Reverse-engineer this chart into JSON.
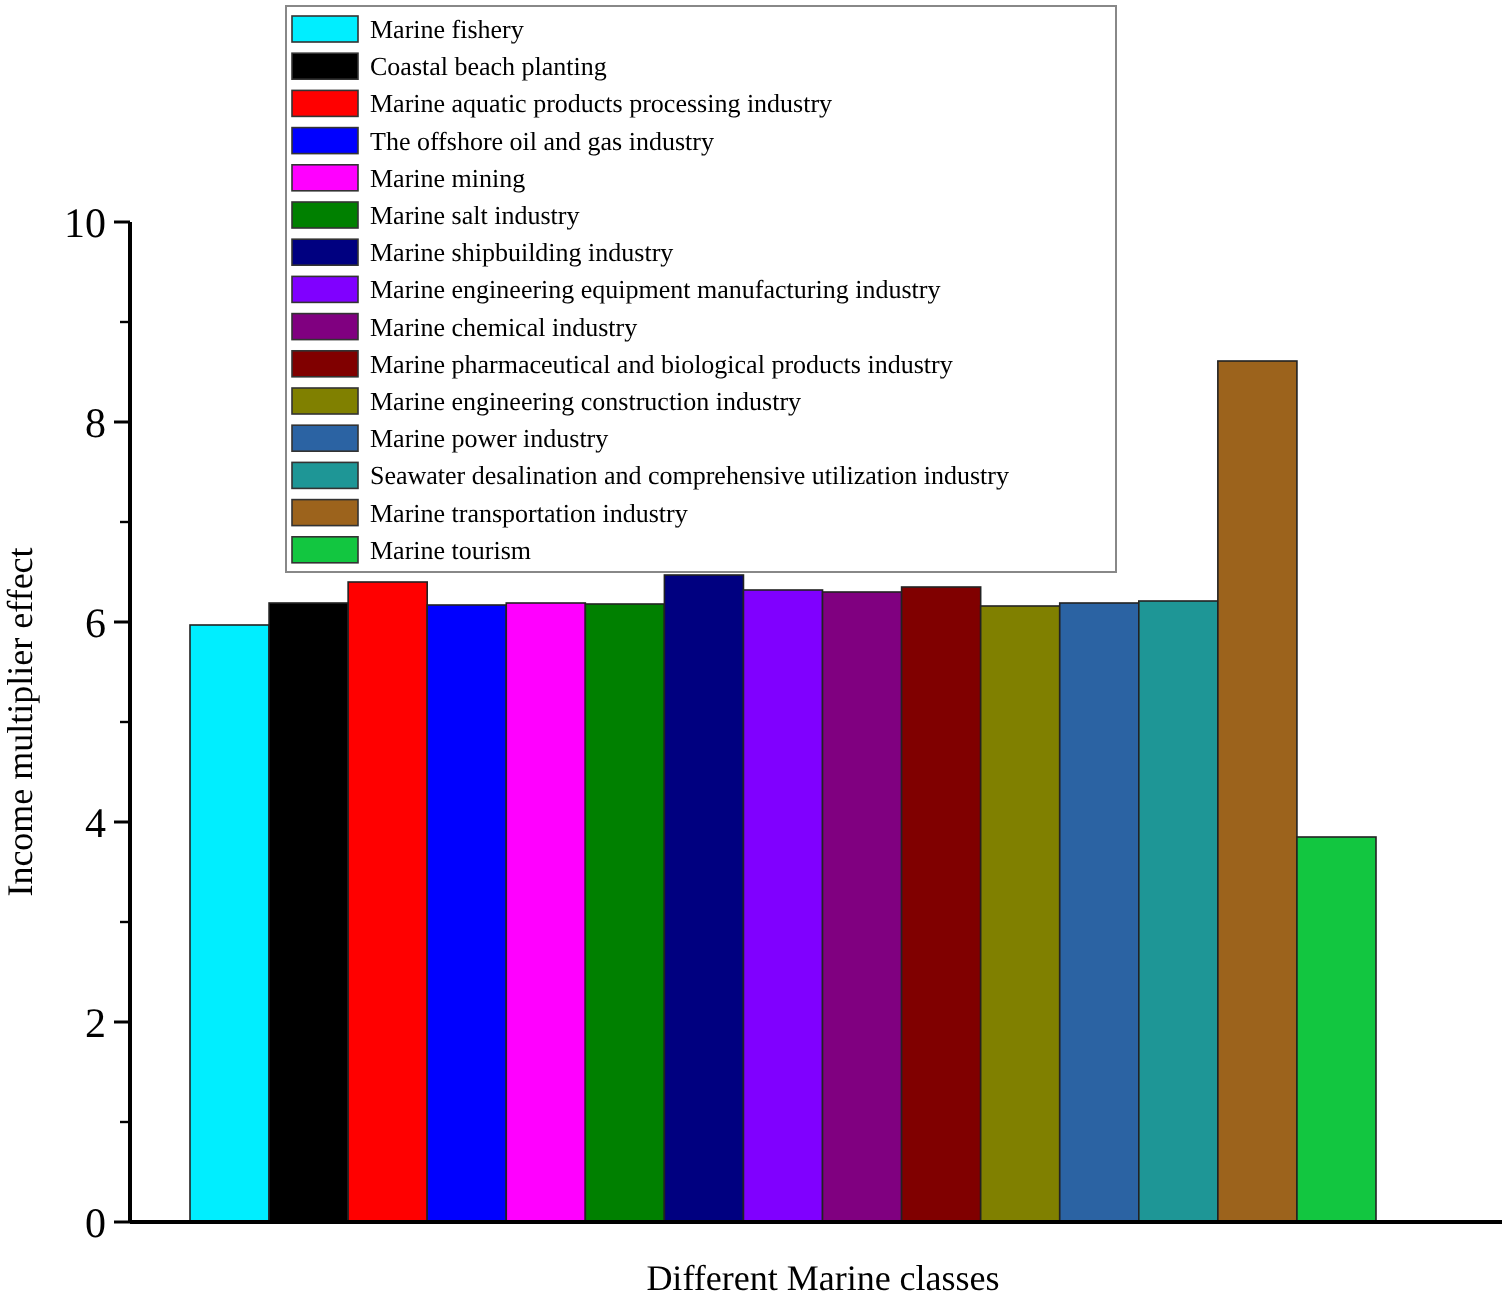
{
  "chart_data": {
    "type": "bar",
    "xlabel": "Different Marine classes",
    "ylabel": "Income multiplier effect",
    "categories": [
      null,
      null,
      null,
      null,
      null,
      null,
      null,
      null,
      null,
      null,
      null,
      null,
      null,
      null,
      null
    ],
    "stacked": true,
    "ylim": [
      0,
      10
    ],
    "yticks": [
      0,
      2,
      4,
      6,
      8,
      10
    ],
    "grid": false,
    "legend": "top",
    "series": [
      {
        "name": "Marine fishery",
        "color": "#00eeff",
        "values": [
          5.97,
          null,
          null,
          null,
          null,
          null,
          null,
          null,
          null,
          null,
          null,
          null,
          null,
          null,
          null
        ]
      },
      {
        "name": "Coastal beach planting",
        "color": "#000000",
        "values": [
          null,
          6.19,
          null,
          null,
          null,
          null,
          null,
          null,
          null,
          null,
          null,
          null,
          null,
          null,
          null
        ]
      },
      {
        "name": "Marine aquatic products processing industry",
        "color": "#ff0000",
        "values": [
          null,
          null,
          6.4,
          null,
          null,
          null,
          null,
          null,
          null,
          null,
          null,
          null,
          null,
          null,
          null
        ]
      },
      {
        "name": "The offshore oil and gas industry",
        "color": "#0000ff",
        "values": [
          null,
          null,
          null,
          6.17,
          null,
          null,
          null,
          null,
          null,
          null,
          null,
          null,
          null,
          null,
          null
        ]
      },
      {
        "name": "Marine mining",
        "color": "#ff00ff",
        "values": [
          null,
          null,
          null,
          null,
          6.19,
          null,
          null,
          null,
          null,
          null,
          null,
          null,
          null,
          null,
          null
        ]
      },
      {
        "name": "Marine salt industry",
        "color": "#008000",
        "values": [
          null,
          null,
          null,
          null,
          null,
          6.18,
          null,
          null,
          null,
          null,
          null,
          null,
          null,
          null,
          null
        ]
      },
      {
        "name": "Marine shipbuilding industry",
        "color": "#000080",
        "values": [
          null,
          null,
          null,
          null,
          null,
          null,
          6.47,
          null,
          null,
          null,
          null,
          null,
          null,
          null,
          null
        ]
      },
      {
        "name": "Marine engineering equipment manufacturing industry",
        "color": "#8000ff",
        "values": [
          null,
          null,
          null,
          null,
          null,
          null,
          null,
          6.32,
          null,
          null,
          null,
          null,
          null,
          null,
          null
        ]
      },
      {
        "name": "Marine chemical industry",
        "color": "#800080",
        "values": [
          null,
          null,
          null,
          null,
          null,
          null,
          null,
          null,
          6.3,
          null,
          null,
          null,
          null,
          null,
          null
        ]
      },
      {
        "name": "Marine pharmaceutical and biological products industry",
        "color": "#800000",
        "values": [
          null,
          null,
          null,
          null,
          null,
          null,
          null,
          null,
          null,
          6.35,
          null,
          null,
          null,
          null,
          null
        ]
      },
      {
        "name": "Marine engineering construction industry",
        "color": "#808000",
        "values": [
          null,
          null,
          null,
          null,
          null,
          null,
          null,
          null,
          null,
          null,
          6.16,
          null,
          null,
          null,
          null
        ]
      },
      {
        "name": "Marine power industry",
        "color": "#2b63a3",
        "values": [
          null,
          null,
          null,
          null,
          null,
          null,
          null,
          null,
          null,
          null,
          null,
          6.19,
          null,
          null,
          null
        ]
      },
      {
        "name": "Seawater desalination and comprehensive utilization industry",
        "color": "#1e9696",
        "values": [
          null,
          null,
          null,
          null,
          null,
          null,
          null,
          null,
          null,
          null,
          null,
          null,
          6.21,
          null,
          null
        ]
      },
      {
        "name": "Marine transportation industry",
        "color": "#9c631c",
        "values": [
          null,
          null,
          null,
          null,
          null,
          null,
          null,
          null,
          null,
          null,
          null,
          null,
          null,
          8.61,
          null
        ]
      },
      {
        "name": "Marine tourism",
        "color": "#12c640",
        "values": [
          null,
          null,
          null,
          null,
          null,
          null,
          null,
          null,
          null,
          null,
          null,
          null,
          null,
          null,
          3.85
        ]
      }
    ]
  }
}
